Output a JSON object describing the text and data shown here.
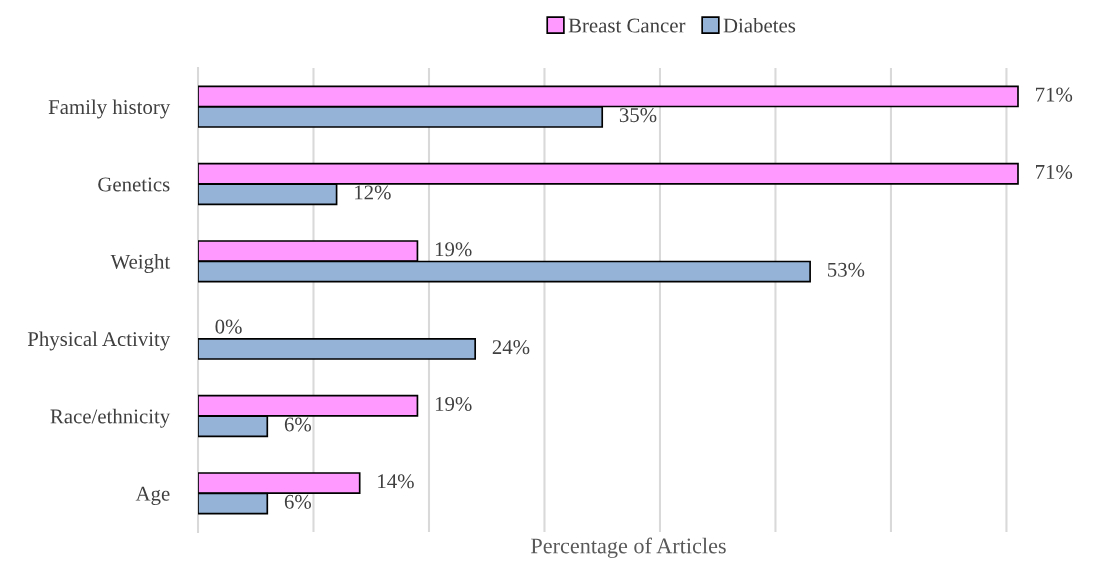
{
  "chart_data": {
    "type": "bar",
    "orientation": "horizontal",
    "xlabel": "Percentage of Articles",
    "categories": [
      "Family history",
      "Genetics",
      "Weight",
      "Physical Activity",
      "Race/ethnicity",
      "Age"
    ],
    "series": [
      {
        "name": "Breast Cancer",
        "color": "#ff99ff",
        "values": [
          71,
          71,
          19,
          0,
          19,
          14
        ],
        "value_labels": [
          "71%",
          "71%",
          "19%",
          "0%",
          "19%",
          "14%"
        ]
      },
      {
        "name": "Diabetes",
        "color": "#95b3d7",
        "values": [
          35,
          12,
          53,
          24,
          6,
          6
        ],
        "value_labels": [
          "35%",
          "12%",
          "53%",
          "24%",
          "6%",
          "6%"
        ]
      }
    ],
    "xticks": [
      {
        "value": 0,
        "label": null
      },
      {
        "value": 10,
        "label": null
      },
      {
        "value": 20,
        "label": null
      },
      {
        "value": 30,
        "label": null
      },
      {
        "value": 40,
        "label": null
      },
      {
        "value": 50,
        "label": null
      },
      {
        "value": 60,
        "label": null
      },
      {
        "value": 70,
        "label": null
      }
    ],
    "tick_labels": "y",
    "grid": "x",
    "legend": "top"
  }
}
